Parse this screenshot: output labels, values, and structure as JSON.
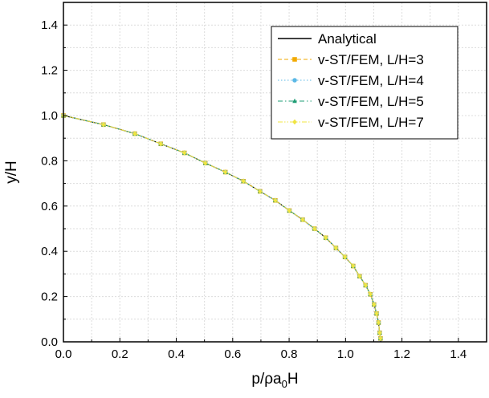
{
  "chart_data": {
    "type": "line",
    "title": "",
    "xlabel": "p/ρa₀H",
    "ylabel": "y/H",
    "xlim": [
      0.0,
      1.5
    ],
    "ylim": [
      0.0,
      1.5
    ],
    "xticks": [
      "0.0",
      "0.2",
      "0.4",
      "0.6",
      "0.8",
      "1.0",
      "1.2",
      "1.4"
    ],
    "yticks": [
      "0.0",
      "0.2",
      "0.4",
      "0.6",
      "0.8",
      "1.0",
      "1.2",
      "1.4"
    ],
    "grid": true,
    "legend_position": "top-right",
    "series": [
      {
        "name": "Analytical",
        "style": "solid-line",
        "color": "#000000",
        "x": [
          0.0,
          0.142,
          0.253,
          0.345,
          0.429,
          0.503,
          0.574,
          0.638,
          0.697,
          0.751,
          0.801,
          0.848,
          0.89,
          0.93,
          0.966,
          0.998,
          1.027,
          1.05,
          1.071,
          1.088,
          1.101,
          1.11,
          1.117,
          1.121,
          1.124,
          1.125
        ],
        "y": [
          1.0,
          0.96,
          0.92,
          0.875,
          0.835,
          0.79,
          0.75,
          0.71,
          0.665,
          0.625,
          0.58,
          0.54,
          0.5,
          0.46,
          0.415,
          0.375,
          0.335,
          0.29,
          0.25,
          0.21,
          0.165,
          0.125,
          0.085,
          0.04,
          0.015,
          0.0
        ]
      },
      {
        "name": "v-ST/FEM, L/H=3",
        "style": "dashed",
        "marker": "square",
        "color": "#F2A900",
        "x": [
          0.0,
          0.142,
          0.253,
          0.345,
          0.429,
          0.503,
          0.574,
          0.638,
          0.697,
          0.751,
          0.801,
          0.848,
          0.89,
          0.93,
          0.966,
          0.998,
          1.027,
          1.05,
          1.071,
          1.088,
          1.101,
          1.11,
          1.117,
          1.121,
          1.124
        ],
        "y": [
          1.0,
          0.96,
          0.92,
          0.875,
          0.835,
          0.79,
          0.75,
          0.71,
          0.665,
          0.625,
          0.58,
          0.54,
          0.5,
          0.46,
          0.415,
          0.375,
          0.335,
          0.29,
          0.25,
          0.21,
          0.165,
          0.125,
          0.085,
          0.04,
          0.015
        ]
      },
      {
        "name": "v-ST/FEM, L/H=4",
        "style": "dotted",
        "marker": "circle",
        "color": "#5BB8E6",
        "x": [
          0.0,
          0.142,
          0.253,
          0.345,
          0.429,
          0.503,
          0.574,
          0.638,
          0.697,
          0.751,
          0.801,
          0.848,
          0.89,
          0.93,
          0.966,
          0.998,
          1.027,
          1.05,
          1.071,
          1.088,
          1.101,
          1.11,
          1.117,
          1.121,
          1.124
        ],
        "y": [
          1.0,
          0.96,
          0.92,
          0.875,
          0.835,
          0.79,
          0.75,
          0.71,
          0.665,
          0.625,
          0.58,
          0.54,
          0.5,
          0.46,
          0.415,
          0.375,
          0.335,
          0.29,
          0.25,
          0.21,
          0.165,
          0.125,
          0.085,
          0.04,
          0.015
        ]
      },
      {
        "name": "v-ST/FEM, L/H=5",
        "style": "dash-dot",
        "marker": "triangle",
        "color": "#1E9C74",
        "x": [
          0.0,
          0.142,
          0.253,
          0.345,
          0.429,
          0.503,
          0.574,
          0.638,
          0.697,
          0.751,
          0.801,
          0.848,
          0.89,
          0.93,
          0.966,
          0.998,
          1.027,
          1.05,
          1.071,
          1.088,
          1.101,
          1.11,
          1.117,
          1.121,
          1.124
        ],
        "y": [
          1.0,
          0.96,
          0.92,
          0.875,
          0.835,
          0.79,
          0.75,
          0.71,
          0.665,
          0.625,
          0.58,
          0.54,
          0.5,
          0.46,
          0.415,
          0.375,
          0.335,
          0.29,
          0.25,
          0.21,
          0.165,
          0.125,
          0.085,
          0.04,
          0.015
        ]
      },
      {
        "name": "v-ST/FEM, L/H=7",
        "style": "dash-dot-dot",
        "marker": "diamond",
        "color": "#F0E442",
        "x": [
          0.0,
          0.142,
          0.253,
          0.345,
          0.429,
          0.503,
          0.574,
          0.638,
          0.697,
          0.751,
          0.801,
          0.848,
          0.89,
          0.93,
          0.966,
          0.998,
          1.027,
          1.05,
          1.071,
          1.088,
          1.101,
          1.11,
          1.117,
          1.121,
          1.124
        ],
        "y": [
          1.0,
          0.96,
          0.92,
          0.875,
          0.835,
          0.79,
          0.75,
          0.71,
          0.665,
          0.625,
          0.58,
          0.54,
          0.5,
          0.46,
          0.415,
          0.375,
          0.335,
          0.29,
          0.25,
          0.21,
          0.165,
          0.125,
          0.085,
          0.04,
          0.015
        ]
      }
    ]
  }
}
